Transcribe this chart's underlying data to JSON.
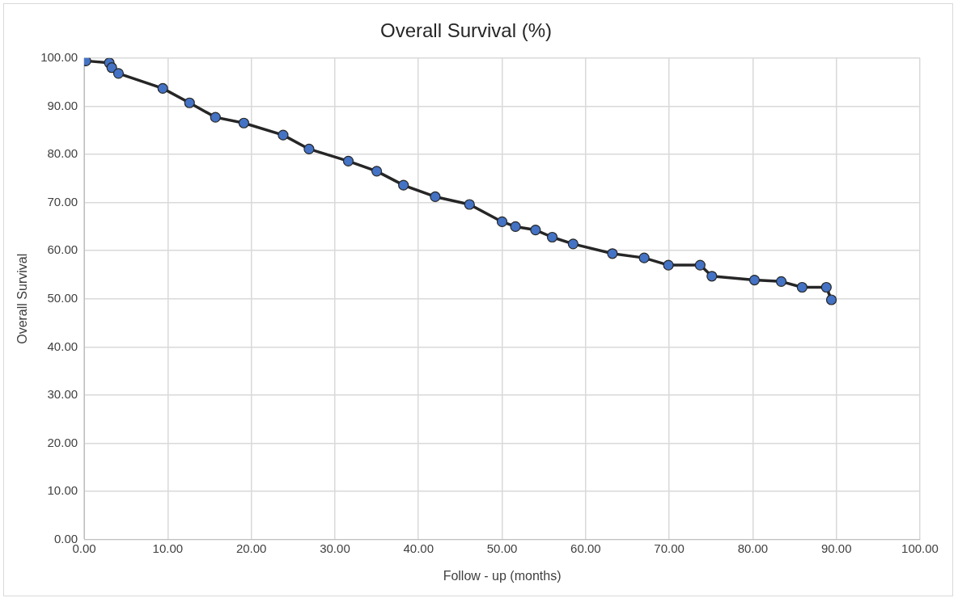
{
  "chart_data": {
    "type": "line",
    "title": "Overall Survival (%)",
    "xlabel": "Follow - up (months)",
    "ylabel": "Overall Survival",
    "x": [
      0.2,
      3.0,
      3.3,
      4.1,
      9.4,
      12.6,
      15.7,
      19.1,
      23.8,
      26.9,
      31.6,
      35.0,
      38.2,
      42.0,
      46.1,
      50.0,
      51.6,
      54.0,
      56.0,
      58.5,
      63.2,
      67.0,
      69.9,
      73.7,
      75.1,
      80.2,
      83.4,
      85.9,
      88.8,
      89.4
    ],
    "series": [
      {
        "color": "#4472c4",
        "values": [
          99.4,
          99.0,
          98.0,
          96.8,
          93.7,
          90.7,
          87.7,
          86.5,
          84.0,
          81.1,
          78.6,
          76.5,
          73.6,
          71.2,
          69.6,
          66.0,
          65.0,
          64.3,
          62.8,
          61.4,
          59.4,
          58.5,
          57.0,
          57.0,
          54.7,
          53.9,
          53.6,
          52.4,
          52.4,
          49.8
        ]
      }
    ],
    "xlim": [
      0,
      100
    ],
    "ylim": [
      0,
      100
    ],
    "xticks": [
      {
        "value": 0,
        "label": "0.00"
      },
      {
        "value": 10,
        "label": "10.00"
      },
      {
        "value": 20,
        "label": "20.00"
      },
      {
        "value": 30,
        "label": "30.00"
      },
      {
        "value": 40,
        "label": "40.00"
      },
      {
        "value": 50,
        "label": "50.00"
      },
      {
        "value": 60,
        "label": "60.00"
      },
      {
        "value": 70,
        "label": "70.00"
      },
      {
        "value": 80,
        "label": "80.00"
      },
      {
        "value": 90,
        "label": "90.00"
      },
      {
        "value": 100,
        "label": "100.00"
      }
    ],
    "yticks": [
      {
        "value": 0,
        "label": "0.00"
      },
      {
        "value": 10,
        "label": "10.00"
      },
      {
        "value": 20,
        "label": "20.00"
      },
      {
        "value": 30,
        "label": "30.00"
      },
      {
        "value": 40,
        "label": "40.00"
      },
      {
        "value": 50,
        "label": "50.00"
      },
      {
        "value": 60,
        "label": "60.00"
      },
      {
        "value": 70,
        "label": "70.00"
      },
      {
        "value": 80,
        "label": "80.00"
      },
      {
        "value": 90,
        "label": "90.00"
      },
      {
        "value": 100,
        "label": "100.00"
      }
    ],
    "grid": true,
    "marker": "circle",
    "line_style": "solid",
    "legend": false
  }
}
